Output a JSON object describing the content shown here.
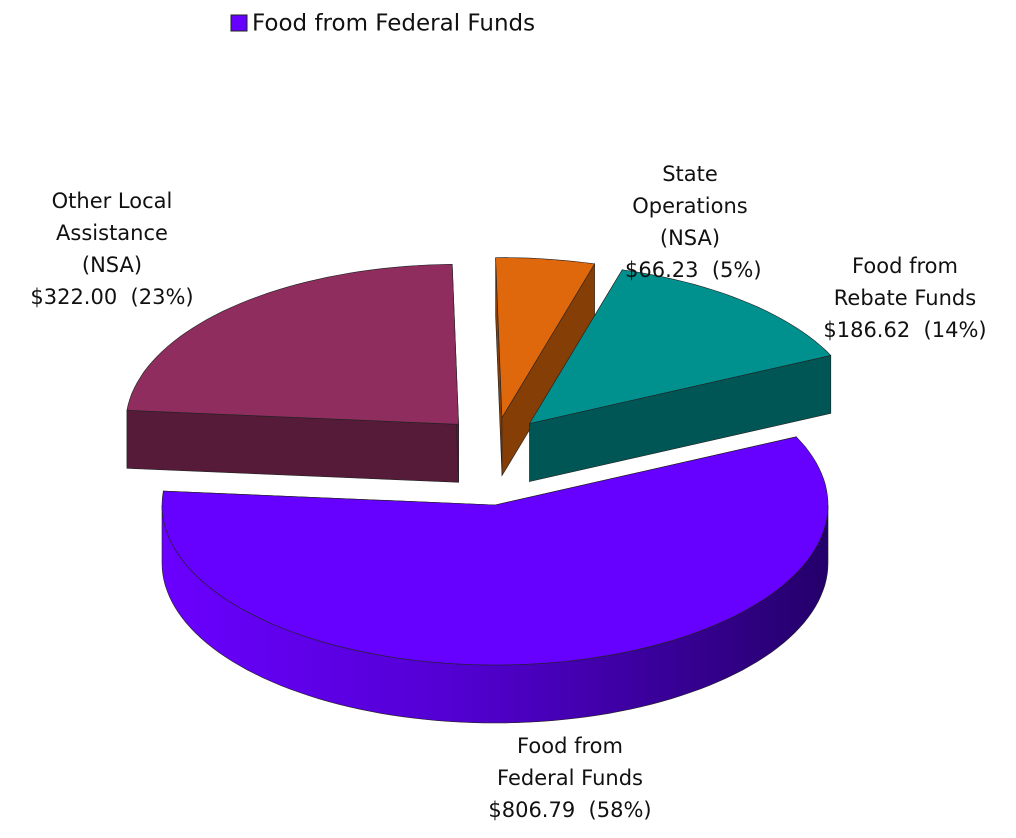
{
  "chart_data": {
    "type": "pie3d",
    "categories": [
      "Other Local Assistance (NSA)",
      "State Operations (NSA)",
      "Food from Rebate Funds",
      "Food from Federal Funds"
    ],
    "values": [
      322.0,
      66.23,
      186.62,
      806.79
    ],
    "value_labels": [
      "$322.00  (23%)",
      "$66.23  (5%)",
      "$186.62  (14%)",
      "$806.79  (58%)"
    ],
    "colors": [
      "#8e2d5e",
      "#e0680c",
      "#00908e",
      "#6600ff"
    ],
    "legend": "top"
  }
}
